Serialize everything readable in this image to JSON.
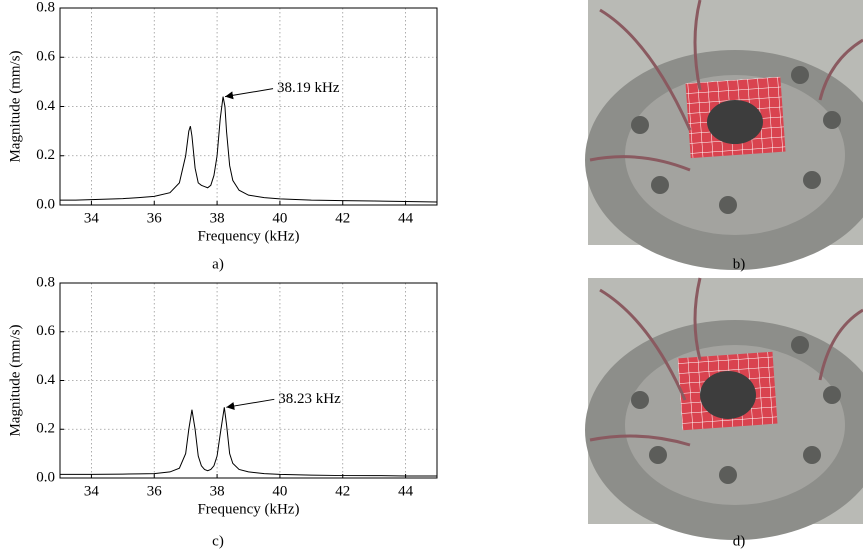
{
  "chart_data": [
    {
      "type": "line",
      "caption": "a)",
      "x_label": "Frequency (kHz)",
      "y_label": "Magnitude (mm/s)",
      "annotation": "38.19 kHz",
      "x": [
        33,
        33.5,
        34,
        34.5,
        35,
        35.5,
        36,
        36.5,
        36.8,
        37.0,
        37.1,
        37.15,
        37.2,
        37.3,
        37.4,
        37.5,
        37.6,
        37.7,
        37.8,
        37.9,
        38.0,
        38.1,
        38.19,
        38.25,
        38.3,
        38.4,
        38.5,
        38.7,
        39,
        39.5,
        40,
        41,
        42,
        43,
        44,
        45
      ],
      "series": [
        {
          "color": "#000000",
          "values": [
            0.02,
            0.02,
            0.022,
            0.024,
            0.026,
            0.03,
            0.035,
            0.05,
            0.09,
            0.2,
            0.3,
            0.32,
            0.28,
            0.15,
            0.09,
            0.08,
            0.075,
            0.07,
            0.08,
            0.12,
            0.2,
            0.35,
            0.44,
            0.4,
            0.3,
            0.16,
            0.1,
            0.06,
            0.04,
            0.03,
            0.025,
            0.02,
            0.018,
            0.016,
            0.014,
            0.012
          ]
        }
      ],
      "xlim": [
        33,
        45
      ],
      "xticks": [
        34,
        36,
        38,
        40,
        42,
        44
      ],
      "ylim": [
        0,
        0.8
      ],
      "yticks": [
        {
          "value": 0,
          "label": "0.0"
        },
        0.2,
        0.4,
        0.6,
        0.8
      ],
      "grid": true
    },
    {
      "type": "line",
      "caption": "c)",
      "x_label": "Frequency (kHz)",
      "y_label": "Magnitude (mm/s)",
      "annotation": "38.23 kHz",
      "x": [
        33,
        34,
        35,
        35.5,
        36,
        36.5,
        36.8,
        37.0,
        37.1,
        37.2,
        37.3,
        37.4,
        37.5,
        37.6,
        37.7,
        37.8,
        37.9,
        38.0,
        38.1,
        38.23,
        38.3,
        38.4,
        38.5,
        38.7,
        39,
        39.5,
        40,
        41,
        42,
        43,
        44,
        45
      ],
      "series": [
        {
          "color": "#000000",
          "values": [
            0.015,
            0.015,
            0.016,
            0.017,
            0.018,
            0.025,
            0.04,
            0.1,
            0.2,
            0.28,
            0.2,
            0.09,
            0.05,
            0.035,
            0.03,
            0.035,
            0.05,
            0.09,
            0.18,
            0.29,
            0.22,
            0.1,
            0.06,
            0.035,
            0.025,
            0.018,
            0.015,
            0.012,
            0.01,
            0.01,
            0.008,
            0.008
          ]
        }
      ],
      "xlim": [
        33,
        45
      ],
      "xticks": [
        34,
        36,
        38,
        40,
        42,
        44
      ],
      "ylim": [
        0,
        0.8
      ],
      "yticks": [
        {
          "value": 0,
          "label": "0.0"
        },
        0.2,
        0.4,
        0.6,
        0.8
      ],
      "grid": true
    }
  ],
  "photo_captions": [
    "b)",
    "d)"
  ]
}
